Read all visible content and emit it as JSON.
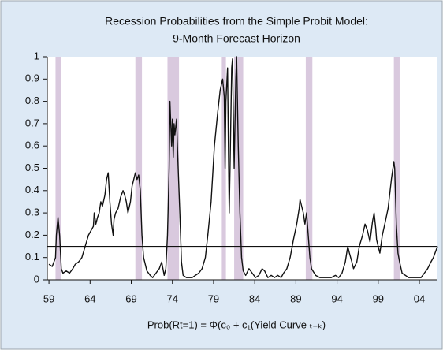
{
  "chart_data": {
    "type": "line",
    "title": "Recession Probabilities from the Simple Probit Model:",
    "subtitle": "9-Month Forecast Horizon",
    "x_label": "Prob(Rt=1) = Φ(c₀ + c₁(Yield Curve ₜ₋ₖ)",
    "xlim": [
      1958.8,
      2006.2
    ],
    "ylim": [
      0,
      1
    ],
    "xticks": [
      {
        "value": 1959,
        "label": "59"
      },
      {
        "value": 1964,
        "label": "64"
      },
      {
        "value": 1969,
        "label": "69"
      },
      {
        "value": 1974,
        "label": "74"
      },
      {
        "value": 1979,
        "label": "79"
      },
      {
        "value": 1984,
        "label": "84"
      },
      {
        "value": 1989,
        "label": "89"
      },
      {
        "value": 1994,
        "label": "94"
      },
      {
        "value": 1999,
        "label": "99"
      },
      {
        "value": 2004,
        "label": "04"
      }
    ],
    "yticks": [
      0,
      0.1,
      0.2,
      0.3,
      0.4,
      0.5,
      0.6,
      0.7,
      0.8,
      0.9,
      1
    ],
    "threshold": 0.15,
    "recessions": [
      [
        1959.8,
        1960.5
      ],
      [
        1969.5,
        1970.3
      ],
      [
        1973.4,
        1974.8
      ],
      [
        1980.0,
        1980.5
      ],
      [
        1981.5,
        1982.6
      ],
      [
        1990.2,
        1991.0
      ],
      [
        2000.9,
        2001.6
      ]
    ],
    "recession_color": "#d9c9de",
    "x": [
      1959.0,
      1959.4,
      1959.8,
      1959.9,
      1960.1,
      1960.3,
      1960.5,
      1960.7,
      1961.1,
      1961.5,
      1961.9,
      1962.2,
      1962.6,
      1963.0,
      1963.4,
      1963.8,
      1964.1,
      1964.4,
      1964.5,
      1964.7,
      1964.9,
      1965.1,
      1965.3,
      1965.5,
      1965.8,
      1966.0,
      1966.2,
      1966.4,
      1966.6,
      1966.8,
      1966.9,
      1967.1,
      1967.4,
      1967.7,
      1968.0,
      1968.2,
      1968.4,
      1968.6,
      1968.9,
      1969.1,
      1969.3,
      1969.5,
      1969.7,
      1969.9,
      1970.1,
      1970.3,
      1970.5,
      1970.9,
      1971.3,
      1971.6,
      1972.0,
      1972.4,
      1972.7,
      1973.0,
      1973.2,
      1973.4,
      1973.6,
      1973.7,
      1973.8,
      1973.9,
      1974.0,
      1974.1,
      1974.2,
      1974.3,
      1974.5,
      1974.7,
      1974.9,
      1975.1,
      1975.3,
      1975.7,
      1976.0,
      1976.4,
      1976.8,
      1977.2,
      1977.6,
      1978.0,
      1978.3,
      1978.7,
      1979.1,
      1979.5,
      1979.8,
      1980.1,
      1980.3,
      1980.4,
      1980.5,
      1980.7,
      1980.8,
      1980.9,
      1981.0,
      1981.2,
      1981.3,
      1981.5,
      1981.7,
      1981.8,
      1982.0,
      1982.2,
      1982.4,
      1982.6,
      1982.9,
      1983.3,
      1983.7,
      1984.1,
      1984.5,
      1984.9,
      1985.2,
      1985.6,
      1986.0,
      1986.4,
      1986.8,
      1987.2,
      1987.5,
      1987.9,
      1988.3,
      1988.7,
      1989.1,
      1989.4,
      1989.5,
      1989.7,
      1989.9,
      1990.1,
      1990.3,
      1990.5,
      1990.7,
      1990.9,
      1991.4,
      1991.9,
      1992.3,
      1992.8,
      1993.3,
      1993.8,
      1994.2,
      1994.6,
      1995.0,
      1995.3,
      1995.5,
      1995.8,
      1996.0,
      1996.4,
      1996.7,
      1997.1,
      1997.4,
      1997.7,
      1998.0,
      1998.3,
      1998.5,
      1998.7,
      1998.8,
      1999.2,
      1999.5,
      1999.8,
      2000.2,
      2000.6,
      2000.9,
      2001.0,
      2001.2,
      2001.4,
      2001.6,
      2001.9,
      2002.3,
      2002.7,
      2003.1,
      2003.4,
      2003.8,
      2004.2,
      2004.6,
      2005.0,
      2005.4,
      2005.7,
      2006.0,
      2006.2
    ],
    "series": [
      {
        "color": "#111111",
        "values": [
          0.07,
          0.06,
          0.1,
          0.2,
          0.28,
          0.2,
          0.05,
          0.03,
          0.04,
          0.03,
          0.05,
          0.07,
          0.08,
          0.1,
          0.15,
          0.2,
          0.22,
          0.24,
          0.3,
          0.25,
          0.28,
          0.3,
          0.35,
          0.33,
          0.38,
          0.45,
          0.48,
          0.35,
          0.25,
          0.2,
          0.27,
          0.3,
          0.32,
          0.37,
          0.4,
          0.38,
          0.35,
          0.3,
          0.35,
          0.42,
          0.45,
          0.48,
          0.45,
          0.47,
          0.4,
          0.2,
          0.1,
          0.04,
          0.02,
          0.01,
          0.03,
          0.05,
          0.08,
          0.02,
          0.05,
          0.2,
          0.5,
          0.8,
          0.7,
          0.6,
          0.72,
          0.55,
          0.7,
          0.65,
          0.72,
          0.5,
          0.3,
          0.08,
          0.02,
          0.01,
          0.01,
          0.01,
          0.02,
          0.03,
          0.05,
          0.1,
          0.2,
          0.35,
          0.6,
          0.75,
          0.85,
          0.9,
          0.82,
          0.5,
          0.8,
          0.95,
          0.6,
          0.3,
          0.5,
          0.95,
          0.99,
          0.5,
          0.9,
          1.0,
          0.6,
          0.3,
          0.1,
          0.04,
          0.02,
          0.05,
          0.03,
          0.01,
          0.02,
          0.05,
          0.04,
          0.01,
          0.02,
          0.01,
          0.02,
          0.01,
          0.03,
          0.05,
          0.1,
          0.18,
          0.25,
          0.32,
          0.36,
          0.33,
          0.3,
          0.25,
          0.3,
          0.2,
          0.1,
          0.05,
          0.02,
          0.01,
          0.01,
          0.01,
          0.01,
          0.02,
          0.01,
          0.03,
          0.08,
          0.15,
          0.12,
          0.08,
          0.05,
          0.08,
          0.15,
          0.2,
          0.25,
          0.22,
          0.17,
          0.26,
          0.3,
          0.23,
          0.18,
          0.12,
          0.2,
          0.25,
          0.32,
          0.45,
          0.53,
          0.5,
          0.25,
          0.12,
          0.08,
          0.03,
          0.02,
          0.01,
          0.01,
          0.01,
          0.01,
          0.01,
          0.03,
          0.05,
          0.08,
          0.1,
          0.13,
          0.15
        ]
      }
    ]
  }
}
